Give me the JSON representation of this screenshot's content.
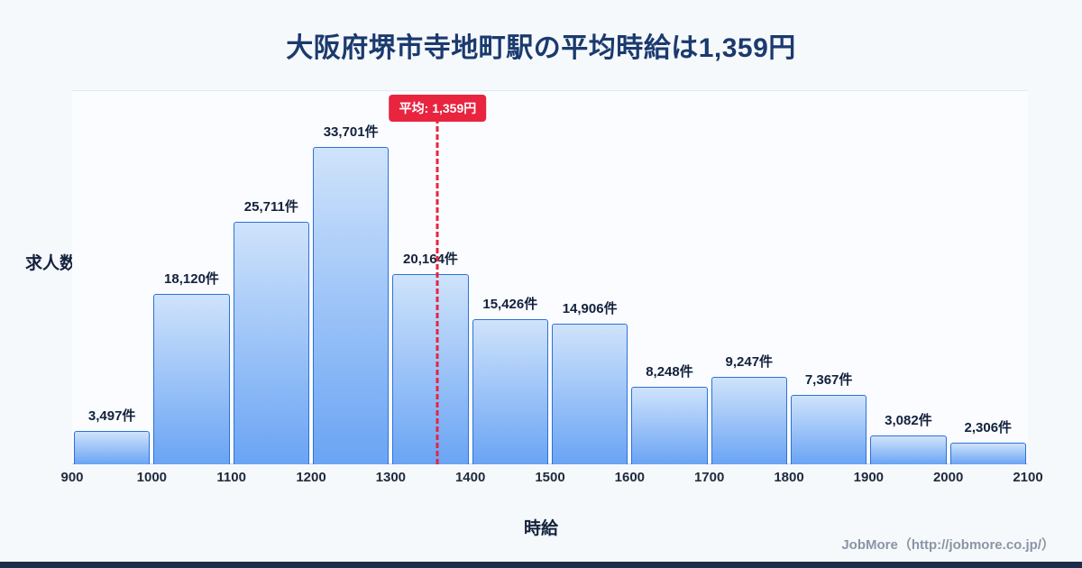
{
  "title": "大阪府堺市寺地町駅の平均時給は1,359円",
  "chart_data": {
    "type": "bar",
    "categories": [
      "900-1000",
      "1000-1100",
      "1100-1200",
      "1200-1300",
      "1300-1400",
      "1400-1500",
      "1500-1600",
      "1600-1700",
      "1700-1800",
      "1800-1900",
      "1900-2000",
      "2000-2100"
    ],
    "values": [
      3497,
      18120,
      25711,
      33701,
      20164,
      15426,
      14906,
      8248,
      9247,
      7367,
      3082,
      2306
    ],
    "bar_labels": [
      "3,497件",
      "18,120件",
      "25,711件",
      "33,701件",
      "20,164件",
      "15,426件",
      "14,906件",
      "8,248件",
      "9,247件",
      "7,367件",
      "3,082件",
      "2,306件"
    ],
    "x_ticks": [
      "900",
      "1000",
      "1100",
      "1200",
      "1300",
      "1400",
      "1500",
      "1600",
      "1700",
      "1800",
      "1900",
      "2000",
      "2100"
    ],
    "x_range": [
      900,
      2100
    ],
    "ylim": [
      0,
      33701
    ],
    "xlabel": "時給",
    "ylabel": "求人数",
    "average_value": 1359,
    "average_label": "平均: 1,359円",
    "grid": false,
    "legend": "none"
  },
  "footer": {
    "credit": "JobMore（http://jobmore.co.jp/）"
  },
  "colors": {
    "background": "#f6f9fc",
    "plot_bg": "#fafcff",
    "title_color": "#1b3a6e",
    "accent_red": "#e8243f",
    "bar_top": "#cfe3fb",
    "bar_bottom": "#6aa4f4",
    "bar_border": "#2e71d8",
    "footer_text": "#8b95a5",
    "bottom_bar": "#1d2c4d"
  }
}
